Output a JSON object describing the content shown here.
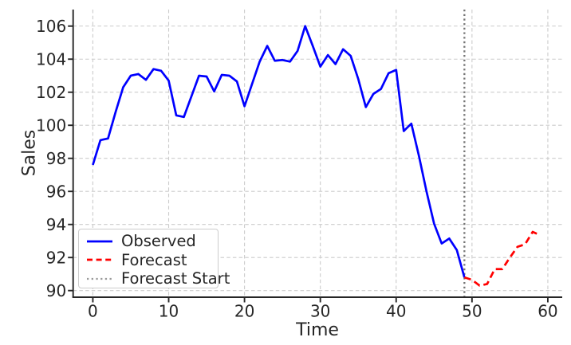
{
  "figure": {
    "xlabel": "Time",
    "ylabel": "Sales"
  },
  "legend": {
    "items": [
      {
        "label": "Observed",
        "color": "#0000ff",
        "style": "solid"
      },
      {
        "label": "Forecast",
        "color": "#ff0000",
        "style": "dashed"
      },
      {
        "label": "Forecast Start",
        "color": "#9a9a9a",
        "style": "dotted"
      }
    ]
  },
  "chart_data": {
    "type": "line",
    "title": "",
    "xlabel": "Time",
    "ylabel": "Sales",
    "x_ticks": [
      0,
      10,
      20,
      30,
      40,
      50,
      60
    ],
    "y_ticks": [
      90,
      92,
      94,
      96,
      98,
      100,
      102,
      104,
      106
    ],
    "xlim": [
      -2.6,
      61.9
    ],
    "ylim": [
      89.6,
      107.0
    ],
    "grid": true,
    "legend_position": "lower left",
    "series": [
      {
        "name": "Observed",
        "color": "#0000ff",
        "line_style": "solid",
        "x_start": 0,
        "values": [
          97.6,
          99.1,
          99.2,
          100.8,
          102.3,
          103.0,
          103.1,
          102.75,
          103.4,
          103.3,
          102.7,
          100.6,
          100.5,
          101.75,
          103.0,
          102.95,
          102.05,
          103.05,
          103.0,
          102.65,
          101.15,
          102.5,
          103.85,
          104.8,
          103.9,
          103.95,
          103.85,
          104.5,
          106.0,
          104.8,
          103.55,
          104.25,
          103.7,
          104.6,
          104.2,
          102.8,
          101.1,
          101.9,
          102.2,
          103.15,
          103.35,
          99.65,
          100.1,
          98.15,
          96.0,
          94.05,
          92.85,
          93.15,
          92.45,
          90.8
        ]
      },
      {
        "name": "Forecast",
        "color": "#ff0000",
        "line_style": "dashed",
        "x_start": 49,
        "values": [
          90.8,
          90.65,
          90.3,
          90.4,
          91.3,
          91.3,
          92.0,
          92.65,
          92.8,
          93.55,
          93.35
        ]
      }
    ],
    "vline": {
      "name": "Forecast Start",
      "x": 49,
      "color": "#757575",
      "line_style": "dotted"
    },
    "style": {
      "grid_color": "#cccccc",
      "axis_color": "#262626",
      "text_color": "#262626",
      "background": "#ffffff"
    }
  }
}
